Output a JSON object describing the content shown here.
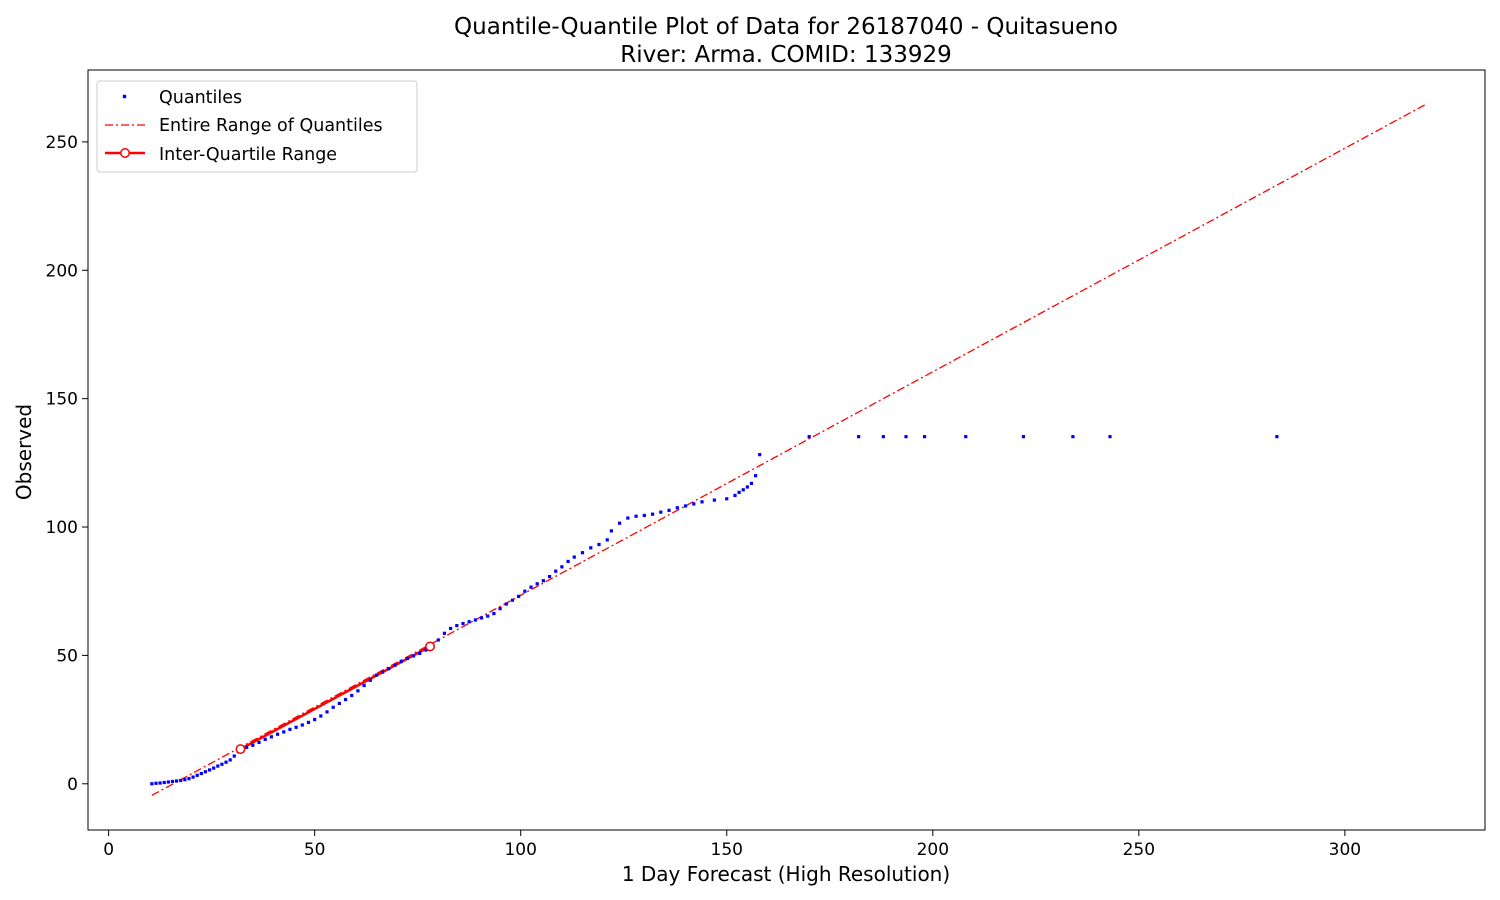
{
  "chart_data": {
    "type": "scatter",
    "title": "Quantile-Quantile Plot of Data for 26187040 - Quitasueno",
    "subtitle": "River: Arma. COMID: 133929",
    "xlabel": "1 Day Forecast (High Resolution)",
    "ylabel": "Observed",
    "xlim": [
      -5,
      334
    ],
    "ylim": [
      -18,
      278
    ],
    "xticks": [
      0,
      50,
      100,
      150,
      200,
      250,
      300
    ],
    "yticks": [
      0,
      50,
      100,
      150,
      200,
      250
    ],
    "grid": false,
    "legend_position": "top-left",
    "series": [
      {
        "name": "Quantiles",
        "kind": "points",
        "color": "#0000ff",
        "points": [
          [
            10.5,
            0.0
          ],
          [
            11.5,
            0.2
          ],
          [
            12.5,
            0.3
          ],
          [
            13.5,
            0.5
          ],
          [
            14.5,
            0.7
          ],
          [
            15.5,
            0.9
          ],
          [
            16.5,
            1.1
          ],
          [
            17.5,
            1.3
          ],
          [
            18.5,
            1.6
          ],
          [
            19.5,
            2.0
          ],
          [
            20.5,
            2.6
          ],
          [
            21.5,
            3.3
          ],
          [
            22.5,
            4.0
          ],
          [
            23.5,
            4.7
          ],
          [
            24.5,
            5.4
          ],
          [
            25.5,
            6.1
          ],
          [
            26.5,
            6.9
          ],
          [
            27.5,
            7.6
          ],
          [
            28.5,
            8.4
          ],
          [
            29.5,
            9.3
          ],
          [
            30.5,
            10.8
          ],
          [
            31.5,
            12.5
          ],
          [
            32.5,
            13.6
          ],
          [
            33.5,
            14.2
          ],
          [
            35,
            15.0
          ],
          [
            36.5,
            16.1
          ],
          [
            38,
            17.3
          ],
          [
            39.5,
            18.3
          ],
          [
            41,
            19.3
          ],
          [
            42.5,
            20.2
          ],
          [
            44,
            21.2
          ],
          [
            45.5,
            22.0
          ],
          [
            47,
            22.9
          ],
          [
            48.5,
            23.9
          ],
          [
            50,
            25.0
          ],
          [
            51.5,
            26.4
          ],
          [
            53,
            28.0
          ],
          [
            54.5,
            29.8
          ],
          [
            56,
            31.3
          ],
          [
            57.5,
            32.8
          ],
          [
            59,
            34.4
          ],
          [
            60.5,
            36.2
          ],
          [
            62,
            38.3
          ],
          [
            63.5,
            40.3
          ],
          [
            65,
            42.3
          ],
          [
            66.5,
            43.5
          ],
          [
            68,
            44.8
          ],
          [
            69.5,
            46.2
          ],
          [
            71,
            47.6
          ],
          [
            72.5,
            48.8
          ],
          [
            74,
            49.8
          ],
          [
            75.5,
            50.8
          ],
          [
            77,
            52.1
          ],
          [
            78.5,
            53.5
          ],
          [
            80,
            56.0
          ],
          [
            81.5,
            58.6
          ],
          [
            83,
            60.5
          ],
          [
            84.5,
            61.6
          ],
          [
            86,
            62.4
          ],
          [
            87.5,
            63.1
          ],
          [
            89,
            63.8
          ],
          [
            90.5,
            64.6
          ],
          [
            92,
            65.3
          ],
          [
            93.5,
            66.3
          ],
          [
            95,
            68.2
          ],
          [
            96.5,
            70.0
          ],
          [
            98,
            71.5
          ],
          [
            99.5,
            73.0
          ],
          [
            101,
            75.0
          ],
          [
            102.5,
            76.6
          ],
          [
            104,
            77.9
          ],
          [
            105.5,
            79.1
          ],
          [
            107,
            80.7
          ],
          [
            108.5,
            82.8
          ],
          [
            110,
            84.5
          ],
          [
            111.5,
            86.6
          ],
          [
            113,
            88.3
          ],
          [
            115,
            90.0
          ],
          [
            117,
            91.9
          ],
          [
            119,
            93.2
          ],
          [
            121,
            95.0
          ],
          [
            122,
            98.5
          ],
          [
            124,
            101.5
          ],
          [
            126,
            103.5
          ],
          [
            128,
            104.2
          ],
          [
            130,
            104.5
          ],
          [
            132,
            105.0
          ],
          [
            134,
            105.8
          ],
          [
            136,
            106.5
          ],
          [
            138,
            107.5
          ],
          [
            140,
            108.2
          ],
          [
            142,
            109.0
          ],
          [
            144,
            109.8
          ],
          [
            147,
            110.5
          ],
          [
            150,
            111.0
          ],
          [
            152,
            112.3
          ],
          [
            153,
            113.5
          ],
          [
            154,
            114.5
          ],
          [
            155,
            115.6
          ],
          [
            156,
            117.0
          ],
          [
            157,
            120.0
          ],
          [
            158,
            128.2
          ],
          [
            170,
            135.2
          ],
          [
            182,
            135.2
          ],
          [
            188,
            135.2
          ],
          [
            193.5,
            135.2
          ],
          [
            198,
            135.2
          ],
          [
            208,
            135.2
          ],
          [
            222,
            135.2
          ],
          [
            234,
            135.2
          ],
          [
            243,
            135.2
          ],
          [
            283.5,
            135.2
          ]
        ]
      },
      {
        "name": "Entire Range of Quantiles",
        "kind": "dashdot-line",
        "color": "#ff0000",
        "line": [
          [
            10.5,
            -4.5
          ],
          [
            319.5,
            264.5
          ]
        ]
      },
      {
        "name": "Inter-Quartile Range",
        "kind": "line-with-markers",
        "color": "#ff0000",
        "line": [
          [
            32,
            13.5
          ],
          [
            78,
            53.5
          ]
        ]
      }
    ]
  }
}
